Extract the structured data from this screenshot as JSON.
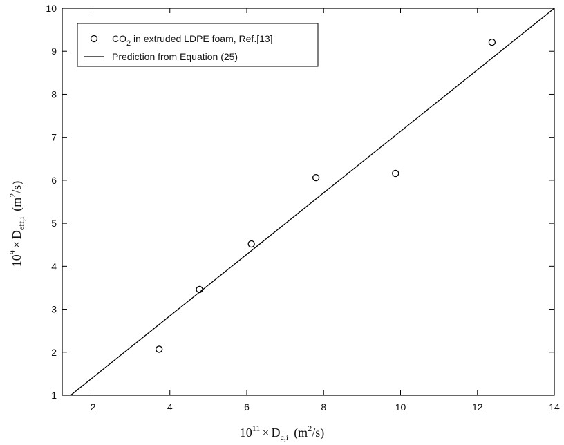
{
  "chart_data": {
    "type": "scatter",
    "xlim": [
      1.2,
      14
    ],
    "ylim": [
      1,
      10
    ],
    "xticks": [
      2,
      4,
      6,
      8,
      10,
      12,
      14
    ],
    "yticks": [
      1,
      2,
      3,
      4,
      5,
      6,
      7,
      8,
      9,
      10
    ],
    "grid": false,
    "legend_position": "top-left",
    "xlabel": {
      "prefix_base": "10",
      "prefix_exp": "11",
      "times": "×",
      "symbol": "D",
      "subscript": "c,i",
      "unit_open": "(m",
      "unit_exp": "2",
      "unit_close": "/s)"
    },
    "ylabel": {
      "prefix_base": "10",
      "prefix_exp": "9",
      "times": "×",
      "symbol": "D",
      "subscript": "eff,i",
      "unit_open": "(m",
      "unit_exp": "2",
      "unit_close": "/s)"
    },
    "series": [
      {
        "name": "CO2 in extruded LDPE foam, Ref.[13]",
        "legend_parts": [
          "CO",
          "2",
          " in extruded LDPE foam, Ref.[13]"
        ],
        "marker": "circle",
        "points": [
          {
            "x": 3.72,
            "y": 2.07
          },
          {
            "x": 4.77,
            "y": 3.46
          },
          {
            "x": 6.12,
            "y": 4.52
          },
          {
            "x": 7.8,
            "y": 6.06
          },
          {
            "x": 9.87,
            "y": 6.16
          },
          {
            "x": 12.38,
            "y": 9.21
          }
        ]
      },
      {
        "name": "Prediction from Equation (25)",
        "marker": "line",
        "line": [
          {
            "x": 1.42,
            "y": 1.0
          },
          {
            "x": 14.0,
            "y": 10.0
          }
        ]
      }
    ]
  }
}
